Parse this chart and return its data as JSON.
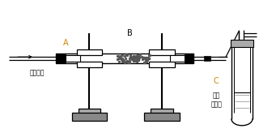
{
  "bg_color": "#ffffff",
  "line_color": "#000000",
  "label_A": "A",
  "label_B": "B",
  "label_C": "C",
  "label_color_A": "#cc8800",
  "label_color_B": "#000000",
  "label_color_C": "#cc8800",
  "label_gas": "通入气体",
  "label_lime1": "澄清",
  "label_lime2": "石灰水",
  "figw": 3.41,
  "figh": 1.69,
  "dpi": 100
}
